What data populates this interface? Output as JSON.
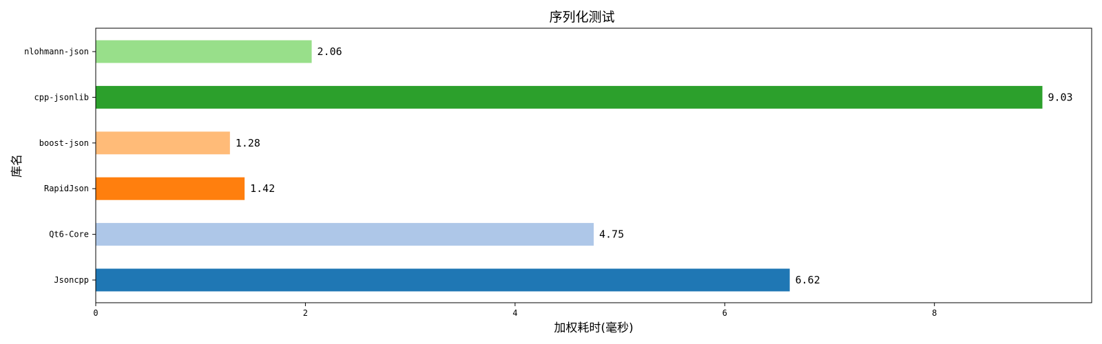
{
  "chart_data": {
    "type": "bar",
    "orientation": "horizontal",
    "title": "序列化测试",
    "xlabel": "加权耗时(毫秒)",
    "ylabel": "库名",
    "categories": [
      "Jsoncpp",
      "Qt6-Core",
      "RapidJson",
      "boost-json",
      "cpp-jsonlib",
      "nlohmann-json"
    ],
    "values": [
      6.62,
      4.75,
      1.42,
      1.28,
      9.03,
      2.06
    ],
    "value_labels": [
      "6.62",
      "4.75",
      "1.42",
      "1.28",
      "9.03",
      "2.06"
    ],
    "colors": [
      "#1f77b4",
      "#aec7e8",
      "#ff7f0e",
      "#ffbb78",
      "#2ca02c",
      "#98df8a"
    ],
    "xlim": [
      0,
      9.5
    ],
    "xticks": [
      0,
      2,
      4,
      6,
      8
    ],
    "xtick_labels": [
      "0",
      "2",
      "4",
      "6",
      "8"
    ],
    "grid": false,
    "legend": "none"
  }
}
